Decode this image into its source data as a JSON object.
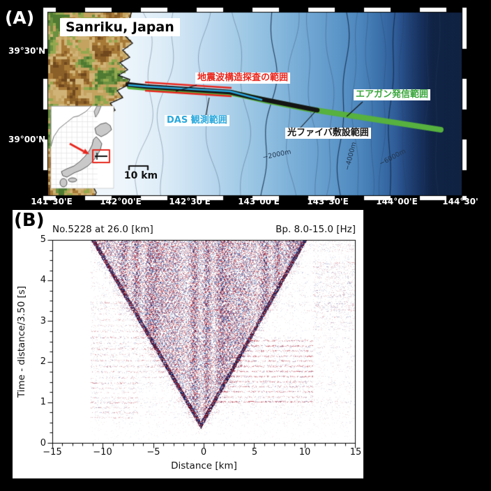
{
  "figure": {
    "background": "#000000"
  },
  "panelA": {
    "label": "(A)",
    "map_title": "Sanriku, Japan",
    "lat_labels": [
      "39°30'N",
      "39°00'N"
    ],
    "lon_labels": [
      "141°30'E",
      "142°00'E",
      "142°30'E",
      "143°00'E",
      "143°30'E",
      "144°00'E",
      "144°30'"
    ],
    "contour_labels": [
      "−2000m",
      "−4000m",
      "−6000m"
    ],
    "scale_bar_label": "10 km",
    "annotations": {
      "survey_range": {
        "text": "地震波構造探査の範囲",
        "color": "#e8261d"
      },
      "das_range": {
        "text": "DAS 観測範囲",
        "color": "#29a8dd"
      },
      "airgun_range": {
        "text": "エアガン発信範囲",
        "color": "#3aa63c"
      },
      "fiber_range": {
        "text": "光ファイバ敷設範囲",
        "color": "#1a1a1a"
      }
    },
    "map_colors": {
      "ocean_shallow": "#e8f2fa",
      "ocean_deep": "#112445",
      "cable_fiber": "#141414",
      "cable_das": "#2aa7dd",
      "cable_airgun": "#56b13e",
      "survey_bracket": "#e8261d",
      "inset_land": "#c9c9c9"
    }
  },
  "panelB": {
    "label": "(B)",
    "header_left": "No.5228 at 26.0 [km]",
    "header_right": "Bp. 8.0-15.0 [Hz]",
    "xlabel": "Distance [km]",
    "ylabel": "Time - distance/3.50 [s]",
    "xtick_labels": [
      "−15",
      "−10",
      "−5",
      "0",
      "5",
      "10",
      "15"
    ],
    "ytick_labels": [
      "5",
      "4",
      "3",
      "2",
      "1",
      "0"
    ]
  },
  "chart_data": {
    "type": "heatmap",
    "title": "No.5228 at 26.0 [km]",
    "subtitle": "Bp. 8.0-15.0 [Hz]",
    "xlabel": "Distance [km]",
    "ylabel": "Time - distance/3.50 [s]",
    "xlim": [
      -15,
      15
    ],
    "ylim": [
      0,
      5
    ],
    "xticks": [
      -15,
      -10,
      -5,
      0,
      5,
      10,
      15
    ],
    "yticks": [
      0,
      1,
      2,
      3,
      4,
      5
    ],
    "x_minor_step": 1,
    "y_minor_step": 0.25,
    "grid": false,
    "legend": "none",
    "colors": {
      "positive": "#a81226",
      "negative": "#1c3082",
      "background": "#ffffff"
    },
    "data_extent_km": [
      -11.2,
      15
    ],
    "first_arrival_apex": {
      "x_km": -0.3,
      "t_s": 0.35
    },
    "apparent_velocity_left_km_s": 2.34,
    "apparent_velocity_right_km_s": 2.26,
    "seed": 20240522,
    "pattern": "red/blue wiggle-density shot gather: dense dark V opening upward from apex near 0 km / 0.35 s, no data left of -11.2 km, horizontal red-blue stripe bands outside the V (strong at 1-2.6 s on +1..+10 km side), faint speckle elsewhere"
  }
}
